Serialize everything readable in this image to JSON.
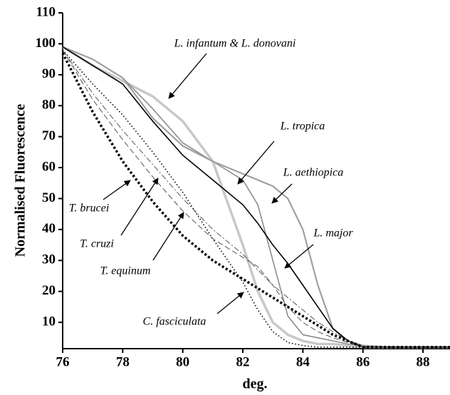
{
  "chart_data": {
    "type": "line",
    "x_label": "deg.",
    "y_label": "Normalised Fluorescence",
    "x": [
      76,
      77,
      78,
      79,
      80,
      81,
      82,
      82.5,
      83,
      83.5,
      84,
      84.5,
      85,
      85.5,
      86,
      87,
      88.9
    ],
    "xlim": [
      76,
      88.9
    ],
    "xticks": [
      76,
      78,
      80,
      82,
      84,
      86,
      88
    ],
    "ylim": [
      1.5,
      110
    ],
    "yticks": [
      10,
      20,
      30,
      40,
      50,
      60,
      70,
      80,
      90,
      100,
      110
    ],
    "series": [
      {
        "name": "L. infantum & L. donovani",
        "color": "#c8c8c8",
        "line_style": "thick",
        "values": [
          99,
          93,
          88,
          83,
          75,
          62,
          35,
          20,
          10,
          6,
          4,
          3,
          3,
          2.5,
          2,
          2,
          2
        ]
      },
      {
        "name": "L. tropica",
        "color": "#8c8c8c",
        "line_style": "solid",
        "values": [
          99,
          95,
          89,
          79,
          68,
          62,
          56,
          48,
          30,
          12,
          6,
          5,
          4,
          3,
          2.5,
          2,
          2
        ]
      },
      {
        "name": "L. aethiopica",
        "color": "#a0a0a0",
        "line_style": "medium",
        "values": [
          99,
          95,
          89,
          76,
          67,
          62,
          58,
          56,
          54,
          50,
          40,
          22,
          8,
          4,
          2.5,
          2,
          2
        ]
      },
      {
        "name": "L. major",
        "color": "#000000",
        "line_style": "solid",
        "values": [
          99,
          93,
          87,
          75,
          64,
          56,
          48,
          42,
          35,
          29,
          22,
          15,
          8,
          4,
          2,
          2,
          2
        ]
      },
      {
        "name": "T. brucei",
        "color": "#000000",
        "line_style": "dotted",
        "values": [
          98,
          87,
          77,
          65,
          52,
          37,
          23,
          14,
          7,
          3.5,
          2.5,
          2,
          2,
          2,
          2,
          2,
          2
        ]
      },
      {
        "name": "T. cruzi",
        "color": "#555555",
        "line_style": "dashdot",
        "values": [
          98,
          84,
          72,
          61,
          50,
          40,
          32,
          27,
          22,
          18,
          14,
          10,
          7,
          4,
          2,
          2,
          2
        ]
      },
      {
        "name": "T. equinum",
        "color": "#555555",
        "line_style": "dashed",
        "values": [
          98,
          82,
          69,
          57,
          46,
          37,
          31,
          28,
          22,
          15,
          10,
          7,
          5,
          3.5,
          2,
          2,
          2
        ]
      },
      {
        "name": "C. fasciculata",
        "color": "#000000",
        "line_style": "thick-dotted",
        "values": [
          97,
          78,
          62,
          49,
          38,
          30,
          24,
          21,
          18,
          15,
          12,
          9,
          6,
          4,
          2,
          2,
          2
        ]
      }
    ]
  }
}
